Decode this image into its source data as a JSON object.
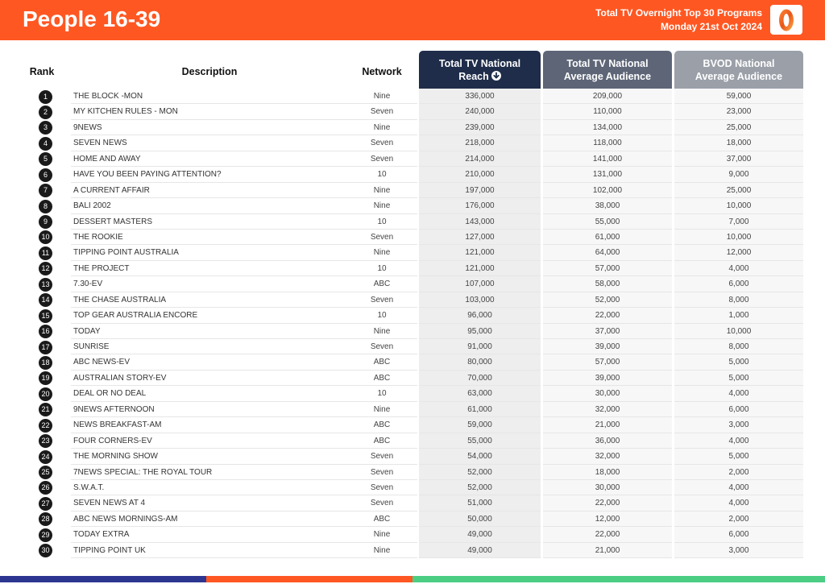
{
  "header": {
    "title": "People 16-39",
    "subtitle_line1": "Total TV Overnight Top 30 Programs",
    "subtitle_line2": "Monday 21st Oct 2024",
    "logo_glyph": "0",
    "background_color": "#ff5722"
  },
  "table": {
    "columns": {
      "rank": "Rank",
      "description": "Description",
      "network": "Network",
      "reach_line1": "Total TV National",
      "reach_line2": "Reach",
      "reach_sort_icon": "sort-descending-icon",
      "avg_line1": "Total TV National",
      "avg_line2": "Average Audience",
      "bvod_line1": "BVOD National",
      "bvod_line2": "Average Audience"
    },
    "header_colors": [
      "#1f2d4a",
      "#5d6577",
      "#9a9fa8"
    ],
    "rows": [
      {
        "rank": "1",
        "description": "THE BLOCK -MON",
        "network": "Nine",
        "reach": "336,000",
        "avg": "209,000",
        "bvod": "59,000"
      },
      {
        "rank": "2",
        "description": "MY KITCHEN RULES - MON",
        "network": "Seven",
        "reach": "240,000",
        "avg": "110,000",
        "bvod": "23,000"
      },
      {
        "rank": "3",
        "description": "9NEWS",
        "network": "Nine",
        "reach": "239,000",
        "avg": "134,000",
        "bvod": "25,000"
      },
      {
        "rank": "4",
        "description": "SEVEN NEWS",
        "network": "Seven",
        "reach": "218,000",
        "avg": "118,000",
        "bvod": "18,000"
      },
      {
        "rank": "5",
        "description": "HOME AND AWAY",
        "network": "Seven",
        "reach": "214,000",
        "avg": "141,000",
        "bvod": "37,000"
      },
      {
        "rank": "6",
        "description": "HAVE YOU BEEN PAYING ATTENTION?",
        "network": "10",
        "reach": "210,000",
        "avg": "131,000",
        "bvod": "9,000"
      },
      {
        "rank": "7",
        "description": "A CURRENT AFFAIR",
        "network": "Nine",
        "reach": "197,000",
        "avg": "102,000",
        "bvod": "25,000"
      },
      {
        "rank": "8",
        "description": "BALI 2002",
        "network": "Nine",
        "reach": "176,000",
        "avg": "38,000",
        "bvod": "10,000"
      },
      {
        "rank": "9",
        "description": "DESSERT MASTERS",
        "network": "10",
        "reach": "143,000",
        "avg": "55,000",
        "bvod": "7,000"
      },
      {
        "rank": "10",
        "description": "THE ROOKIE",
        "network": "Seven",
        "reach": "127,000",
        "avg": "61,000",
        "bvod": "10,000"
      },
      {
        "rank": "11",
        "description": "TIPPING POINT AUSTRALIA",
        "network": "Nine",
        "reach": "121,000",
        "avg": "64,000",
        "bvod": "12,000"
      },
      {
        "rank": "12",
        "description": "THE PROJECT",
        "network": "10",
        "reach": "121,000",
        "avg": "57,000",
        "bvod": "4,000"
      },
      {
        "rank": "13",
        "description": "7.30-EV",
        "network": "ABC",
        "reach": "107,000",
        "avg": "58,000",
        "bvod": "6,000"
      },
      {
        "rank": "14",
        "description": "THE CHASE AUSTRALIA",
        "network": "Seven",
        "reach": "103,000",
        "avg": "52,000",
        "bvod": "8,000"
      },
      {
        "rank": "15",
        "description": "TOP GEAR AUSTRALIA ENCORE",
        "network": "10",
        "reach": "96,000",
        "avg": "22,000",
        "bvod": "1,000"
      },
      {
        "rank": "16",
        "description": "TODAY",
        "network": "Nine",
        "reach": "95,000",
        "avg": "37,000",
        "bvod": "10,000"
      },
      {
        "rank": "17",
        "description": "SUNRISE",
        "network": "Seven",
        "reach": "91,000",
        "avg": "39,000",
        "bvod": "8,000"
      },
      {
        "rank": "18",
        "description": "ABC NEWS-EV",
        "network": "ABC",
        "reach": "80,000",
        "avg": "57,000",
        "bvod": "5,000"
      },
      {
        "rank": "19",
        "description": "AUSTRALIAN STORY-EV",
        "network": "ABC",
        "reach": "70,000",
        "avg": "39,000",
        "bvod": "5,000"
      },
      {
        "rank": "20",
        "description": "DEAL OR NO DEAL",
        "network": "10",
        "reach": "63,000",
        "avg": "30,000",
        "bvod": "4,000"
      },
      {
        "rank": "21",
        "description": "9NEWS AFTERNOON",
        "network": "Nine",
        "reach": "61,000",
        "avg": "32,000",
        "bvod": "6,000"
      },
      {
        "rank": "22",
        "description": "NEWS BREAKFAST-AM",
        "network": "ABC",
        "reach": "59,000",
        "avg": "21,000",
        "bvod": "3,000"
      },
      {
        "rank": "23",
        "description": "FOUR CORNERS-EV",
        "network": "ABC",
        "reach": "55,000",
        "avg": "36,000",
        "bvod": "4,000"
      },
      {
        "rank": "24",
        "description": "THE MORNING SHOW",
        "network": "Seven",
        "reach": "54,000",
        "avg": "32,000",
        "bvod": "5,000"
      },
      {
        "rank": "25",
        "description": "7NEWS SPECIAL: THE ROYAL TOUR",
        "network": "Seven",
        "reach": "52,000",
        "avg": "18,000",
        "bvod": "2,000"
      },
      {
        "rank": "26",
        "description": "S.W.A.T.",
        "network": "Seven",
        "reach": "52,000",
        "avg": "30,000",
        "bvod": "4,000"
      },
      {
        "rank": "27",
        "description": "SEVEN NEWS AT 4",
        "network": "Seven",
        "reach": "51,000",
        "avg": "22,000",
        "bvod": "4,000"
      },
      {
        "rank": "28",
        "description": "ABC NEWS MORNINGS-AM",
        "network": "ABC",
        "reach": "50,000",
        "avg": "12,000",
        "bvod": "2,000"
      },
      {
        "rank": "29",
        "description": "TODAY EXTRA",
        "network": "Nine",
        "reach": "49,000",
        "avg": "22,000",
        "bvod": "6,000"
      },
      {
        "rank": "30",
        "description": "TIPPING POINT UK",
        "network": "Nine",
        "reach": "49,000",
        "avg": "21,000",
        "bvod": "3,000"
      }
    ]
  },
  "footer": {
    "bar_colors": [
      "#2c3691",
      "#ff5722",
      "#4ccd84"
    ]
  }
}
